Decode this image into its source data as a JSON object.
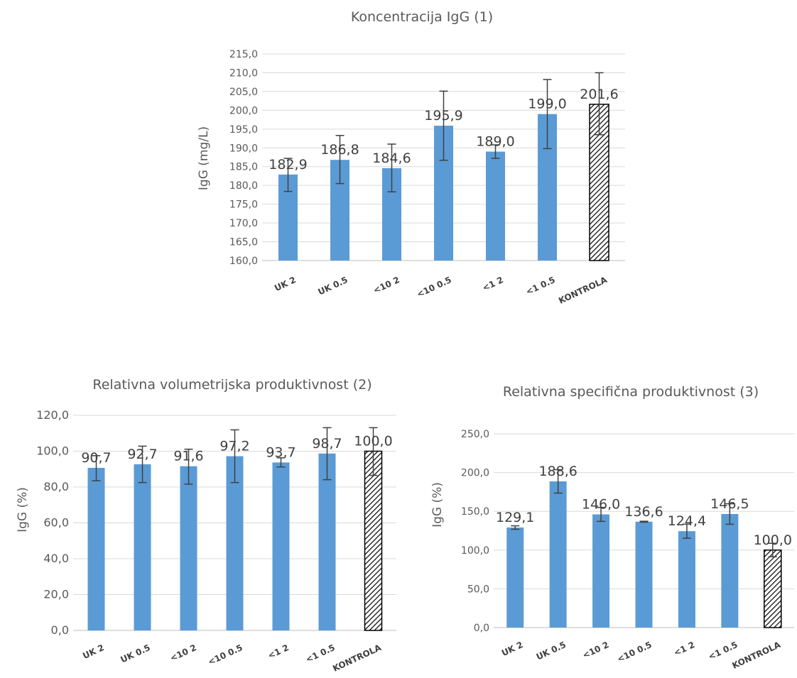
{
  "colors": {
    "bar": "#5b9bd5",
    "control_pattern": "hatched-black",
    "grid": "#d9d9d9",
    "text": "#595959"
  },
  "chart_data": [
    {
      "type": "bar",
      "title": "Koncentracija IgG (1)",
      "xlabel": "",
      "ylabel": "IgG (mg/L)",
      "ylim": [
        160,
        215
      ],
      "ytick_step": 5,
      "ytick_labels": [
        "160,0",
        "165,0",
        "170,0",
        "175,0",
        "180,0",
        "185,0",
        "190,0",
        "195,0",
        "200,0",
        "205,0",
        "210,0",
        "215,0"
      ],
      "categories": [
        "UK 2",
        "UK 0.5",
        "<10 2",
        "<10 0.5",
        "<1 2",
        "<1 0.5",
        "KONTROLA"
      ],
      "values": [
        182.9,
        186.8,
        184.6,
        195.9,
        189.0,
        199.0,
        201.6
      ],
      "value_labels": [
        "182,9",
        "186,8",
        "184,6",
        "195,9",
        "189,0",
        "199,0",
        "201,6"
      ],
      "error_low": [
        178.4,
        180.5,
        178.3,
        186.7,
        187.2,
        189.8,
        193.5
      ],
      "error_high": [
        187.2,
        193.3,
        191.0,
        205.1,
        190.8,
        208.2,
        210.0
      ],
      "hatched_category": "KONTROLA",
      "grid": true
    },
    {
      "type": "bar",
      "title": "Relativna volumetrijska produktivnost (2)",
      "xlabel": "",
      "ylabel": "IgG (%)",
      "ylim": [
        0,
        120
      ],
      "ytick_step": 20,
      "ytick_labels": [
        "0,0",
        "20,0",
        "40,0",
        "60,0",
        "80,0",
        "100,0",
        "120,0"
      ],
      "categories": [
        "UK 2",
        "UK 0.5",
        "<10 2",
        "<10 0.5",
        "<1 2",
        "<1 0.5",
        "KONTROLA"
      ],
      "values": [
        90.7,
        92.7,
        91.6,
        97.2,
        93.7,
        98.7,
        100.0
      ],
      "value_labels": [
        "90,7",
        "92,7",
        "91,6",
        "97,2",
        "93,7",
        "98,7",
        "100,0"
      ],
      "error_low": [
        83.5,
        82.5,
        81.6,
        82.5,
        91.2,
        84.1,
        86.5
      ],
      "error_high": [
        97.5,
        102.8,
        101.1,
        111.9,
        96.3,
        113.1,
        113.1
      ],
      "hatched_category": "KONTROLA",
      "grid": true
    },
    {
      "type": "bar",
      "title": "Relativna specifična produktivnost (3)",
      "xlabel": "",
      "ylabel": "IgG (%)",
      "ylim": [
        0,
        250
      ],
      "ytick_step": 50,
      "ytick_labels": [
        "0,0",
        "50,0",
        "100,0",
        "150,0",
        "200,0",
        "250,0"
      ],
      "categories": [
        "UK 2",
        "UK 0.5",
        "<10 2",
        "<10 0.5",
        "<1 2",
        "<1 0.5",
        "KONTROLA"
      ],
      "values": [
        129.1,
        188.6,
        146.0,
        136.6,
        124.4,
        146.5,
        100.0
      ],
      "value_labels": [
        "129,1",
        "188,6",
        "146,0",
        "136,6",
        "124,4",
        "146,5",
        "100,0"
      ],
      "error_low": [
        126.8,
        173.5,
        137.0,
        136.0,
        115.3,
        133.3,
        91.3
      ],
      "error_high": [
        131.3,
        203.7,
        155.0,
        137.2,
        133.5,
        159.7,
        108.7
      ],
      "hatched_category": "KONTROLA",
      "grid": true
    }
  ]
}
